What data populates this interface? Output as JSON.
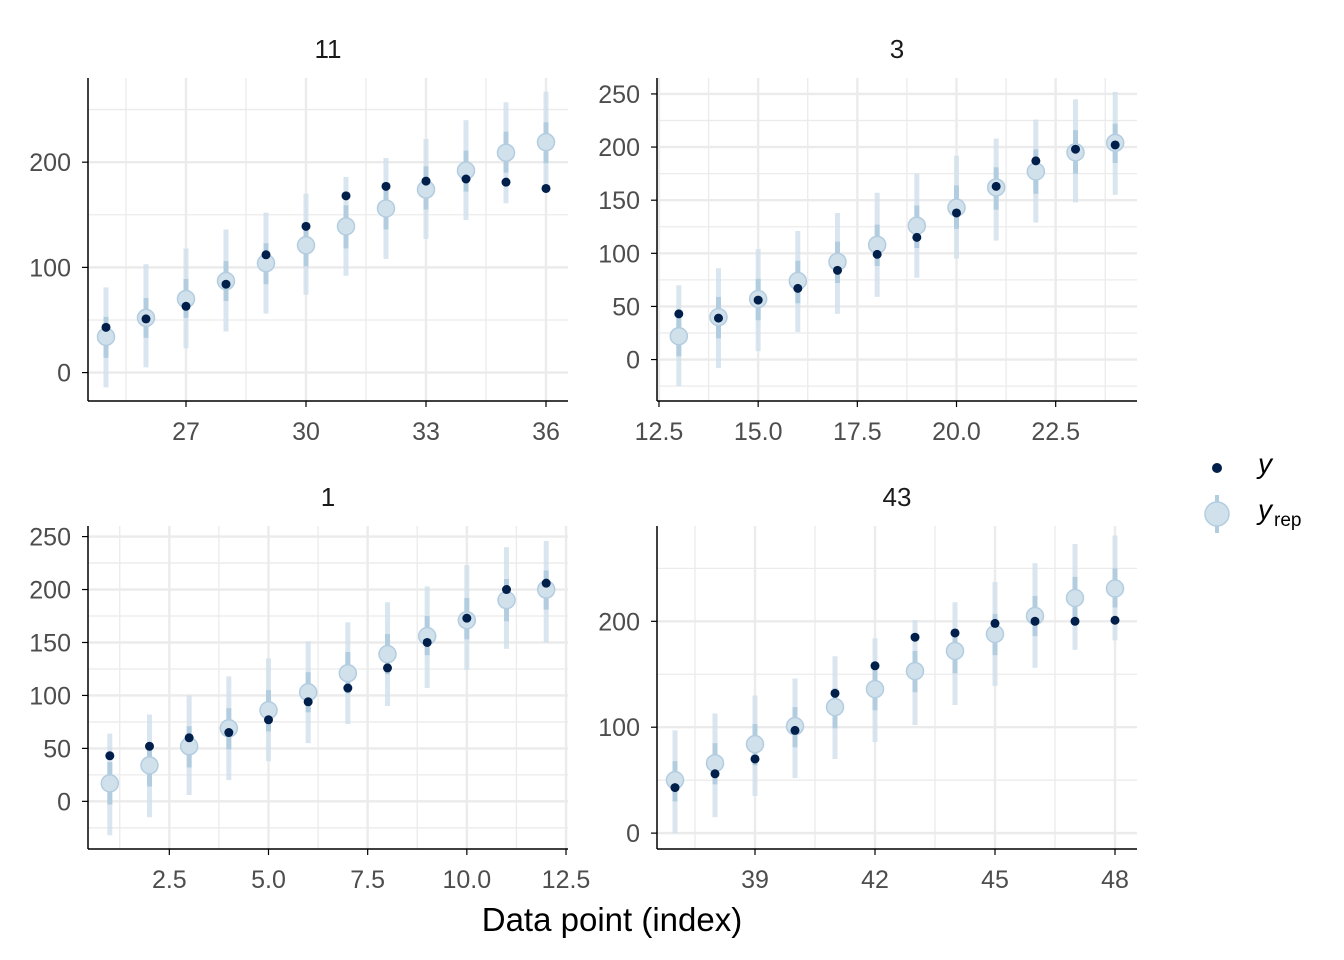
{
  "figure": {
    "x_axis_label": "Data point (index)",
    "legend": {
      "y_label": "y",
      "yrep_base": "y",
      "yrep_sub": "rep"
    }
  },
  "colors": {
    "y_point": "#011f4b",
    "yrep_point_fill": "#d1e1ec",
    "yrep_point_stroke": "#b3cde0",
    "interval_outer": "#d1e1ec",
    "interval_inner": "#b3cde0",
    "grid": "#ebebeb",
    "axis": "#000000"
  },
  "chart_data": [
    {
      "type": "scatter",
      "title": "11",
      "xlim": [
        24.55,
        36.55
      ],
      "ylim": [
        -27,
        280
      ],
      "x_ticks": [
        27,
        30,
        33,
        36
      ],
      "x_tick_labels": [
        "27",
        "30",
        "33",
        "36"
      ],
      "y_ticks": [
        0,
        100,
        200
      ],
      "y_tick_labels": [
        "0",
        "100",
        "200"
      ],
      "grid": true,
      "x": [
        25,
        26,
        27,
        28,
        29,
        30,
        31,
        32,
        33,
        34,
        35,
        36
      ],
      "series": [
        {
          "name": "y",
          "values": [
            43,
            51,
            63,
            84,
            112,
            139,
            168,
            177,
            182,
            184,
            181,
            175
          ]
        },
        {
          "name": "y_rep",
          "median": [
            34,
            52,
            70,
            87,
            104,
            121,
            139,
            156,
            174,
            192,
            209,
            219
          ],
          "inner_50": [
            [
              14,
              53
            ],
            [
              33,
              71
            ],
            [
              52,
              89
            ],
            [
              68,
              106
            ],
            [
              84,
              123
            ],
            [
              101,
              141
            ],
            [
              118,
              159
            ],
            [
              136,
              177
            ],
            [
              155,
              196
            ],
            [
              172,
              211
            ],
            [
              190,
              229
            ],
            [
              199,
              238
            ]
          ],
          "outer_90": [
            [
              -14,
              81
            ],
            [
              5,
              103
            ],
            [
              23,
              118
            ],
            [
              39,
              136
            ],
            [
              56,
              152
            ],
            [
              74,
              170
            ],
            [
              92,
              186
            ],
            [
              108,
              204
            ],
            [
              127,
              222
            ],
            [
              145,
              240
            ],
            [
              161,
              257
            ],
            [
              171,
              267
            ]
          ]
        }
      ]
    },
    {
      "type": "scatter",
      "title": "3",
      "xlim": [
        12.45,
        24.55
      ],
      "ylim": [
        -39,
        265
      ],
      "x_ticks": [
        12.5,
        15.0,
        17.5,
        20.0,
        22.5
      ],
      "x_tick_labels": [
        "12.5",
        "15.0",
        "17.5",
        "20.0",
        "22.5"
      ],
      "y_ticks": [
        0,
        50,
        100,
        150,
        200,
        250
      ],
      "y_tick_labels": [
        "0",
        "50",
        "100",
        "150",
        "200",
        "250"
      ],
      "grid": true,
      "x": [
        13,
        14,
        15,
        16,
        17,
        18,
        19,
        20,
        21,
        22,
        23,
        24
      ],
      "series": [
        {
          "name": "y",
          "values": [
            43,
            39,
            56,
            67,
            84,
            99,
            115,
            138,
            163,
            187,
            198,
            202
          ]
        },
        {
          "name": "y_rep",
          "median": [
            22,
            40,
            57,
            74,
            92,
            108,
            126,
            143,
            162,
            177,
            195,
            204
          ],
          "inner_50": [
            [
              3,
              42
            ],
            [
              20,
              59
            ],
            [
              37,
              76
            ],
            [
              53,
              93
            ],
            [
              72,
              111
            ],
            [
              88,
              127
            ],
            [
              105,
              145
            ],
            [
              123,
              164
            ],
            [
              141,
              181
            ],
            [
              156,
              198
            ],
            [
              175,
              216
            ],
            [
              185,
              222
            ]
          ],
          "outer_90": [
            [
              -25,
              70
            ],
            [
              -8,
              86
            ],
            [
              8,
              104
            ],
            [
              26,
              121
            ],
            [
              43,
              138
            ],
            [
              59,
              157
            ],
            [
              77,
              175
            ],
            [
              95,
              192
            ],
            [
              112,
              208
            ],
            [
              129,
              226
            ],
            [
              148,
              245
            ],
            [
              155,
              252
            ]
          ]
        }
      ]
    },
    {
      "type": "scatter",
      "title": "1",
      "xlim": [
        0.45,
        12.55
      ],
      "ylim": [
        -45,
        260
      ],
      "x_ticks": [
        2.5,
        5.0,
        7.5,
        10.0,
        12.5
      ],
      "x_tick_labels": [
        "2.5",
        "5.0",
        "7.5",
        "10.0",
        "12.5"
      ],
      "y_ticks": [
        0,
        50,
        100,
        150,
        200,
        250
      ],
      "y_tick_labels": [
        "0",
        "50",
        "100",
        "150",
        "200",
        "250"
      ],
      "grid": true,
      "x": [
        1,
        2,
        3,
        4,
        5,
        6,
        7,
        8,
        9,
        10,
        11,
        12
      ],
      "series": [
        {
          "name": "y",
          "values": [
            43,
            52,
            60,
            65,
            77,
            94,
            107,
            126,
            150,
            173,
            200,
            206
          ]
        },
        {
          "name": "y_rep",
          "median": [
            17,
            34,
            52,
            69,
            86,
            103,
            121,
            139,
            156,
            171,
            190,
            200
          ],
          "inner_50": [
            [
              -3,
              37
            ],
            [
              14,
              52
            ],
            [
              32,
              71
            ],
            [
              49,
              88
            ],
            [
              66,
              105
            ],
            [
              84,
              122
            ],
            [
              102,
              141
            ],
            [
              120,
              158
            ],
            [
              138,
              175
            ],
            [
              153,
              192
            ],
            [
              170,
              210
            ],
            [
              181,
              218
            ]
          ],
          "outer_90": [
            [
              -32,
              64
            ],
            [
              -15,
              82
            ],
            [
              6,
              100
            ],
            [
              20,
              118
            ],
            [
              38,
              135
            ],
            [
              55,
              151
            ],
            [
              73,
              169
            ],
            [
              90,
              188
            ],
            [
              107,
              203
            ],
            [
              124,
              223
            ],
            [
              144,
              240
            ],
            [
              150,
              246
            ]
          ]
        }
      ]
    },
    {
      "type": "scatter",
      "title": "43",
      "xlim": [
        36.55,
        48.55
      ],
      "ylim": [
        -15,
        290
      ],
      "x_ticks": [
        39,
        42,
        45,
        48
      ],
      "x_tick_labels": [
        "39",
        "42",
        "45",
        "48"
      ],
      "y_ticks": [
        0,
        100,
        200
      ],
      "y_tick_labels": [
        "0",
        "100",
        "200"
      ],
      "grid": true,
      "x": [
        37,
        38,
        39,
        40,
        41,
        42,
        43,
        44,
        45,
        46,
        47,
        48
      ],
      "series": [
        {
          "name": "y",
          "values": [
            43,
            56,
            70,
            97,
            132,
            158,
            185,
            189,
            198,
            200,
            200,
            201
          ]
        },
        {
          "name": "y_rep",
          "median": [
            50,
            66,
            84,
            101,
            119,
            136,
            153,
            172,
            188,
            205,
            222,
            231
          ],
          "inner_50": [
            [
              30,
              68
            ],
            [
              46,
              85
            ],
            [
              64,
              103
            ],
            [
              81,
              119
            ],
            [
              99,
              137
            ],
            [
              116,
              155
            ],
            [
              133,
              172
            ],
            [
              151,
              191
            ],
            [
              168,
              207
            ],
            [
              186,
              224
            ],
            [
              203,
              242
            ],
            [
              213,
              250
            ]
          ],
          "outer_90": [
            [
              0,
              97
            ],
            [
              15,
              113
            ],
            [
              35,
              130
            ],
            [
              52,
              146
            ],
            [
              70,
              167
            ],
            [
              86,
              184
            ],
            [
              102,
              201
            ],
            [
              121,
              218
            ],
            [
              139,
              237
            ],
            [
              156,
              255
            ],
            [
              173,
              273
            ],
            [
              182,
              281
            ]
          ]
        }
      ]
    }
  ]
}
